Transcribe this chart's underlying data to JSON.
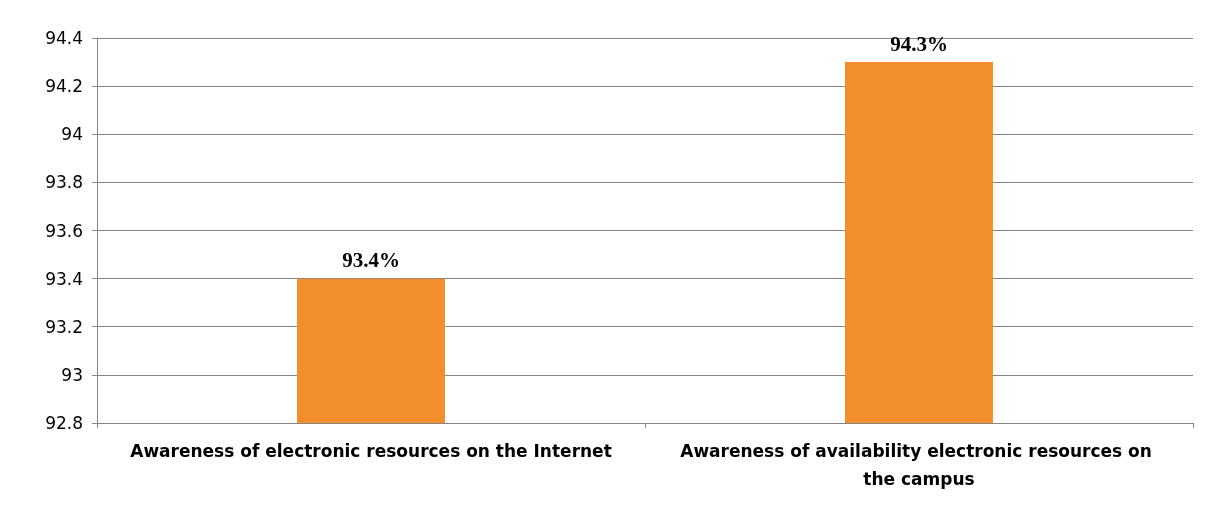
{
  "chart_data": {
    "type": "bar",
    "categories": [
      "Awareness of electronic resources on the Internet",
      "Awareness of availability electronic resources on the campus"
    ],
    "values": [
      93.4,
      94.3
    ],
    "value_labels": [
      "93.4%",
      "94.3%"
    ],
    "color": "#f28f2c",
    "ylim": [
      92.8,
      94.4
    ],
    "yticks": [
      92.8,
      93,
      93.2,
      93.4,
      93.6,
      93.8,
      94,
      94.2,
      94.4
    ],
    "grid": "y"
  }
}
